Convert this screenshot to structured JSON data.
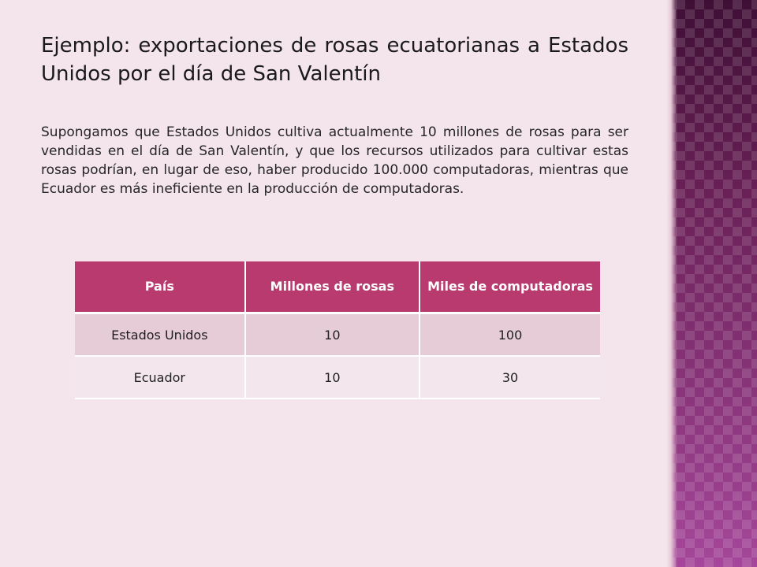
{
  "slide": {
    "title": "Ejemplo: exportaciones de rosas ecuatorianas a Estados Unidos por el día de San Valentín",
    "body": "Supongamos que Estados Unidos cultiva actualmente 10 millones de rosas para ser vendidas en el día de San Valentín, y que los recursos utilizados para cultivar estas rosas podrían, en lugar de eso, haber producido 100.000 computadoras, mientras que Ecuador es más ineficiente en la producción de computadoras."
  },
  "table": {
    "headers": [
      "País",
      "Millones de rosas",
      "Miles de computadoras"
    ],
    "rows": [
      [
        "Estados Unidos",
        "10",
        "100"
      ],
      [
        "Ecuador",
        "10",
        "30"
      ]
    ]
  },
  "colors": {
    "background": "#f4e4ec",
    "header": "#b83a6e",
    "row_alt": "#e6ccd7",
    "side_band": "#7a2b66"
  }
}
